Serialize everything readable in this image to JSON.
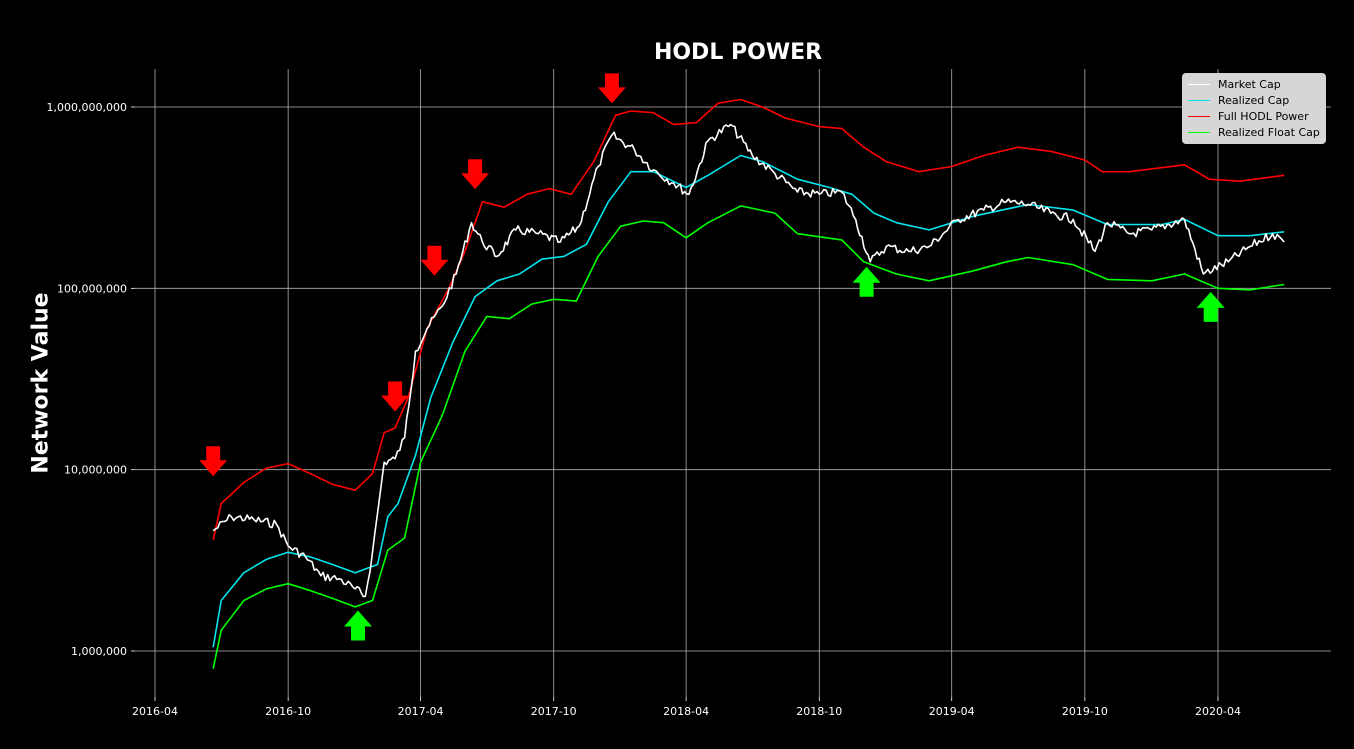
{
  "chart_data": {
    "type": "line",
    "title": "HODL POWER",
    "ylabel": "Network Value",
    "xlabel": "",
    "y_scale": "log",
    "ylim": [
      550000,
      1700000000
    ],
    "xlim": [
      "2016-04",
      "2020-08"
    ],
    "grid": true,
    "legend_position": "top-right",
    "x_ticks": [
      "2016-04",
      "2016-10",
      "2017-04",
      "2017-10",
      "2018-04",
      "2018-10",
      "2019-04",
      "2019-10",
      "2020-04"
    ],
    "y_ticks": [
      1000000,
      10000000,
      100000000,
      1000000000
    ],
    "y_tick_labels": [
      "1,000,000",
      "10,000,000",
      "100,000,000",
      "1,000,000,000"
    ],
    "series": [
      {
        "name": "Market Cap",
        "color": "#ffffff",
        "points": [
          [
            "2016-06-20",
            4600000
          ],
          [
            "2016-07-15",
            5500000
          ],
          [
            "2016-08-15",
            5300000
          ],
          [
            "2016-09-15",
            5000000
          ],
          [
            "2016-10-01",
            3800000
          ],
          [
            "2016-10-25",
            3300000
          ],
          [
            "2016-11-15",
            2600000
          ],
          [
            "2016-12-10",
            2500000
          ],
          [
            "2017-01-01",
            2200000
          ],
          [
            "2017-01-15",
            2000000
          ],
          [
            "2017-01-25",
            3500000
          ],
          [
            "2017-02-10",
            11000000
          ],
          [
            "2017-02-25",
            11500000
          ],
          [
            "2017-03-10",
            15000000
          ],
          [
            "2017-03-25",
            45000000
          ],
          [
            "2017-04-10",
            60000000
          ],
          [
            "2017-05-01",
            80000000
          ],
          [
            "2017-05-20",
            120000000
          ],
          [
            "2017-06-10",
            230000000
          ],
          [
            "2017-06-25",
            180000000
          ],
          [
            "2017-07-15",
            150000000
          ],
          [
            "2017-08-10",
            210000000
          ],
          [
            "2017-09-10",
            200000000
          ],
          [
            "2017-10-10",
            180000000
          ],
          [
            "2017-11-05",
            220000000
          ],
          [
            "2017-12-01",
            470000000
          ],
          [
            "2017-12-20",
            700000000
          ],
          [
            "2018-01-20",
            580000000
          ],
          [
            "2018-02-15",
            450000000
          ],
          [
            "2018-03-15",
            380000000
          ],
          [
            "2018-04-05",
            330000000
          ],
          [
            "2018-05-01",
            650000000
          ],
          [
            "2018-06-01",
            800000000
          ],
          [
            "2018-07-01",
            540000000
          ],
          [
            "2018-08-01",
            430000000
          ],
          [
            "2018-09-01",
            340000000
          ],
          [
            "2018-10-01",
            330000000
          ],
          [
            "2018-11-01",
            340000000
          ],
          [
            "2018-11-20",
            240000000
          ],
          [
            "2018-12-10",
            140000000
          ],
          [
            "2019-01-01",
            170000000
          ],
          [
            "2019-02-01",
            160000000
          ],
          [
            "2019-03-01",
            170000000
          ],
          [
            "2019-04-10",
            240000000
          ],
          [
            "2019-05-15",
            270000000
          ],
          [
            "2019-06-15",
            300000000
          ],
          [
            "2019-07-15",
            290000000
          ],
          [
            "2019-08-15",
            260000000
          ],
          [
            "2019-09-15",
            240000000
          ],
          [
            "2019-10-15",
            160000000
          ],
          [
            "2019-11-01",
            230000000
          ],
          [
            "2019-12-01",
            200000000
          ],
          [
            "2020-01-01",
            210000000
          ],
          [
            "2020-02-15",
            240000000
          ],
          [
            "2020-03-12",
            120000000
          ],
          [
            "2020-04-15",
            140000000
          ],
          [
            "2020-05-15",
            170000000
          ],
          [
            "2020-06-15",
            200000000
          ],
          [
            "2020-07-01",
            180000000
          ]
        ]
      },
      {
        "name": "Realized Cap",
        "color": "#00e5ee",
        "points": [
          [
            "2016-06-20",
            1050000
          ],
          [
            "2016-07-01",
            1900000
          ],
          [
            "2016-08-01",
            2700000
          ],
          [
            "2016-09-01",
            3200000
          ],
          [
            "2016-10-01",
            3500000
          ],
          [
            "2016-11-01",
            3300000
          ],
          [
            "2016-12-01",
            3000000
          ],
          [
            "2017-01-01",
            2700000
          ],
          [
            "2017-02-01",
            3000000
          ],
          [
            "2017-02-15",
            5500000
          ],
          [
            "2017-03-01",
            6500000
          ],
          [
            "2017-03-25",
            12000000
          ],
          [
            "2017-04-15",
            25000000
          ],
          [
            "2017-05-15",
            50000000
          ],
          [
            "2017-06-15",
            90000000
          ],
          [
            "2017-07-15",
            110000000
          ],
          [
            "2017-08-15",
            120000000
          ],
          [
            "2017-09-15",
            145000000
          ],
          [
            "2017-10-15",
            150000000
          ],
          [
            "2017-11-15",
            175000000
          ],
          [
            "2017-12-15",
            300000000
          ],
          [
            "2018-01-15",
            440000000
          ],
          [
            "2018-02-15",
            440000000
          ],
          [
            "2018-04-01",
            360000000
          ],
          [
            "2018-05-01",
            420000000
          ],
          [
            "2018-06-15",
            540000000
          ],
          [
            "2018-07-15",
            500000000
          ],
          [
            "2018-09-01",
            400000000
          ],
          [
            "2018-10-15",
            360000000
          ],
          [
            "2018-11-15",
            330000000
          ],
          [
            "2018-12-15",
            260000000
          ],
          [
            "2019-01-15",
            230000000
          ],
          [
            "2019-03-01",
            210000000
          ],
          [
            "2019-05-01",
            250000000
          ],
          [
            "2019-07-15",
            290000000
          ],
          [
            "2019-09-15",
            270000000
          ],
          [
            "2019-11-01",
            225000000
          ],
          [
            "2020-01-15",
            225000000
          ],
          [
            "2020-02-15",
            240000000
          ],
          [
            "2020-04-01",
            195000000
          ],
          [
            "2020-05-15",
            195000000
          ],
          [
            "2020-07-01",
            205000000
          ]
        ]
      },
      {
        "name": "Full HODL Power",
        "color": "#ff0000",
        "points": [
          [
            "2016-06-20",
            4100000
          ],
          [
            "2016-07-01",
            6500000
          ],
          [
            "2016-08-01",
            8500000
          ],
          [
            "2016-09-01",
            10200000
          ],
          [
            "2016-10-01",
            10800000
          ],
          [
            "2016-11-01",
            9500000
          ],
          [
            "2016-12-01",
            8300000
          ],
          [
            "2017-01-01",
            7700000
          ],
          [
            "2017-01-25",
            9500000
          ],
          [
            "2017-02-10",
            16000000
          ],
          [
            "2017-02-25",
            17000000
          ],
          [
            "2017-03-15",
            25000000
          ],
          [
            "2017-04-10",
            60000000
          ],
          [
            "2017-05-10",
            100000000
          ],
          [
            "2017-06-01",
            160000000
          ],
          [
            "2017-06-25",
            300000000
          ],
          [
            "2017-07-25",
            280000000
          ],
          [
            "2017-08-25",
            330000000
          ],
          [
            "2017-09-25",
            355000000
          ],
          [
            "2017-10-25",
            330000000
          ],
          [
            "2017-11-25",
            500000000
          ],
          [
            "2017-12-25",
            900000000
          ],
          [
            "2018-01-15",
            950000000
          ],
          [
            "2018-02-15",
            930000000
          ],
          [
            "2018-03-15",
            800000000
          ],
          [
            "2018-04-15",
            820000000
          ],
          [
            "2018-05-15",
            1050000000
          ],
          [
            "2018-06-15",
            1100000000
          ],
          [
            "2018-07-15",
            1000000000
          ],
          [
            "2018-08-15",
            870000000
          ],
          [
            "2018-10-01",
            780000000
          ],
          [
            "2018-11-01",
            760000000
          ],
          [
            "2018-12-01",
            600000000
          ],
          [
            "2019-01-01",
            500000000
          ],
          [
            "2019-02-15",
            440000000
          ],
          [
            "2019-04-01",
            470000000
          ],
          [
            "2019-05-15",
            540000000
          ],
          [
            "2019-07-01",
            600000000
          ],
          [
            "2019-08-15",
            570000000
          ],
          [
            "2019-10-01",
            510000000
          ],
          [
            "2019-10-25",
            440000000
          ],
          [
            "2019-12-01",
            440000000
          ],
          [
            "2020-02-15",
            480000000
          ],
          [
            "2020-03-20",
            400000000
          ],
          [
            "2020-05-01",
            390000000
          ],
          [
            "2020-07-01",
            420000000
          ]
        ]
      },
      {
        "name": "Realized Float Cap",
        "color": "#00ff00",
        "points": [
          [
            "2016-06-20",
            800000
          ],
          [
            "2016-07-01",
            1300000
          ],
          [
            "2016-08-01",
            1900000
          ],
          [
            "2016-09-01",
            2200000
          ],
          [
            "2016-10-01",
            2350000
          ],
          [
            "2016-11-01",
            2150000
          ],
          [
            "2016-12-01",
            1950000
          ],
          [
            "2017-01-01",
            1750000
          ],
          [
            "2017-01-25",
            1900000
          ],
          [
            "2017-02-15",
            3600000
          ],
          [
            "2017-03-10",
            4200000
          ],
          [
            "2017-04-01",
            11000000
          ],
          [
            "2017-05-01",
            20000000
          ],
          [
            "2017-06-01",
            45000000
          ],
          [
            "2017-07-01",
            70000000
          ],
          [
            "2017-08-01",
            68000000
          ],
          [
            "2017-09-01",
            82000000
          ],
          [
            "2017-10-01",
            87000000
          ],
          [
            "2017-11-01",
            85000000
          ],
          [
            "2017-12-01",
            150000000
          ],
          [
            "2018-01-01",
            220000000
          ],
          [
            "2018-02-01",
            235000000
          ],
          [
            "2018-03-01",
            230000000
          ],
          [
            "2018-04-01",
            190000000
          ],
          [
            "2018-05-01",
            230000000
          ],
          [
            "2018-06-15",
            285000000
          ],
          [
            "2018-08-01",
            260000000
          ],
          [
            "2018-09-01",
            200000000
          ],
          [
            "2018-11-01",
            185000000
          ],
          [
            "2018-12-01",
            140000000
          ],
          [
            "2019-01-15",
            120000000
          ],
          [
            "2019-03-01",
            110000000
          ],
          [
            "2019-05-01",
            125000000
          ],
          [
            "2019-06-15",
            140000000
          ],
          [
            "2019-07-15",
            148000000
          ],
          [
            "2019-09-15",
            135000000
          ],
          [
            "2019-11-01",
            112000000
          ],
          [
            "2020-01-01",
            110000000
          ],
          [
            "2020-02-15",
            120000000
          ],
          [
            "2020-04-01",
            100000000
          ],
          [
            "2020-05-15",
            98000000
          ],
          [
            "2020-07-01",
            105000000
          ]
        ]
      }
    ],
    "annotations": [
      {
        "type": "down-arrow",
        "color": "#ff0000",
        "date": "2016-06-20",
        "value": 11000000
      },
      {
        "type": "down-arrow",
        "color": "#ff0000",
        "date": "2017-02-25",
        "value": 25000000
      },
      {
        "type": "down-arrow",
        "color": "#ff0000",
        "date": "2017-04-20",
        "value": 140000000
      },
      {
        "type": "down-arrow",
        "color": "#ff0000",
        "date": "2017-06-15",
        "value": 420000000
      },
      {
        "type": "down-arrow",
        "color": "#ff0000",
        "date": "2017-12-20",
        "value": 1250000000
      },
      {
        "type": "up-arrow",
        "color": "#00ff00",
        "date": "2017-01-05",
        "value": 1400000
      },
      {
        "type": "up-arrow",
        "color": "#00ff00",
        "date": "2018-12-05",
        "value": 110000000
      },
      {
        "type": "up-arrow",
        "color": "#00ff00",
        "date": "2020-03-22",
        "value": 80000000
      }
    ]
  }
}
